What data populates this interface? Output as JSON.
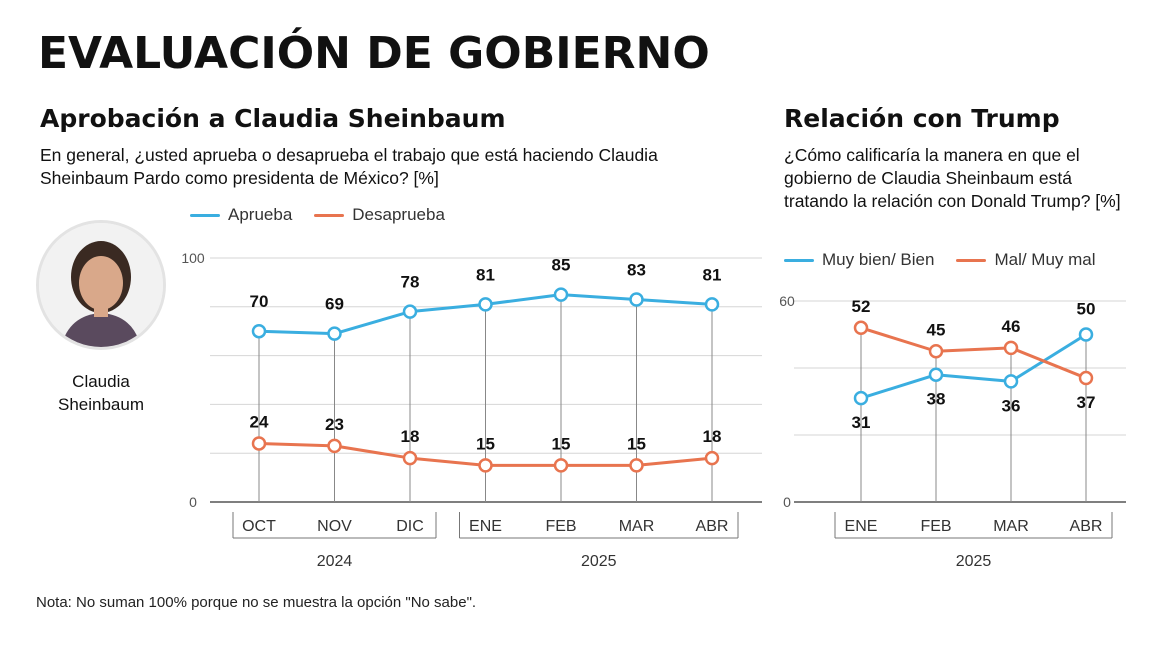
{
  "header": {
    "title": "EVALUACIÓN DE GOBIERNO"
  },
  "approval": {
    "section_title": "Aprobación a Claudia Sheinbaum",
    "question": "En general, ¿usted aprueba o desaprueba el trabajo que está haciendo Claudia Sheinbaum Pardo como presidenta de México? [%]",
    "person_name": "Claudia Sheinbaum"
  },
  "trump": {
    "section_title": "Relación con Trump",
    "question": "¿Cómo calificaría la manera en que el gobierno de Claudia Sheinbaum está tratando la relación con Donald Trump? [%]"
  },
  "footer": {
    "note": "Nota: No suman 100% porque no se muestra la opción \"No sabe\"."
  },
  "colors": {
    "blue": "#3aaee0",
    "orange": "#e8744f",
    "grid": "#d6d6d6",
    "axis": "#888888"
  },
  "chart_data": [
    {
      "type": "line",
      "categories": [
        "OCT",
        "NOV",
        "DIC",
        "ENE",
        "FEB",
        "MAR",
        "ABR"
      ],
      "groups": [
        {
          "label": "2024",
          "categories": [
            "OCT",
            "NOV",
            "DIC"
          ]
        },
        {
          "label": "2025",
          "categories": [
            "ENE",
            "FEB",
            "MAR",
            "ABR"
          ]
        }
      ],
      "series": [
        {
          "name": "Aprueba",
          "values": [
            70,
            69,
            78,
            81,
            85,
            83,
            81
          ],
          "color": "#3aaee0"
        },
        {
          "name": "Desaprueba",
          "values": [
            24,
            23,
            18,
            15,
            15,
            15,
            18
          ],
          "color": "#e8744f"
        }
      ],
      "ylim": [
        0,
        100
      ],
      "y_ticks": [
        "0",
        "100"
      ],
      "grid": true,
      "legend": "top"
    },
    {
      "type": "line",
      "categories": [
        "ENE",
        "FEB",
        "MAR",
        "ABR"
      ],
      "groups": [
        {
          "label": "2025",
          "categories": [
            "ENE",
            "FEB",
            "MAR",
            "ABR"
          ]
        }
      ],
      "series": [
        {
          "name": "Muy bien/ Bien",
          "values": [
            31,
            38,
            36,
            50
          ],
          "color": "#3aaee0"
        },
        {
          "name": "Mal/ Muy mal",
          "values": [
            52,
            45,
            46,
            37
          ],
          "color": "#e8744f"
        }
      ],
      "ylim": [
        0,
        60
      ],
      "y_ticks": [
        "0",
        "60"
      ],
      "grid": true,
      "legend": "top"
    }
  ]
}
